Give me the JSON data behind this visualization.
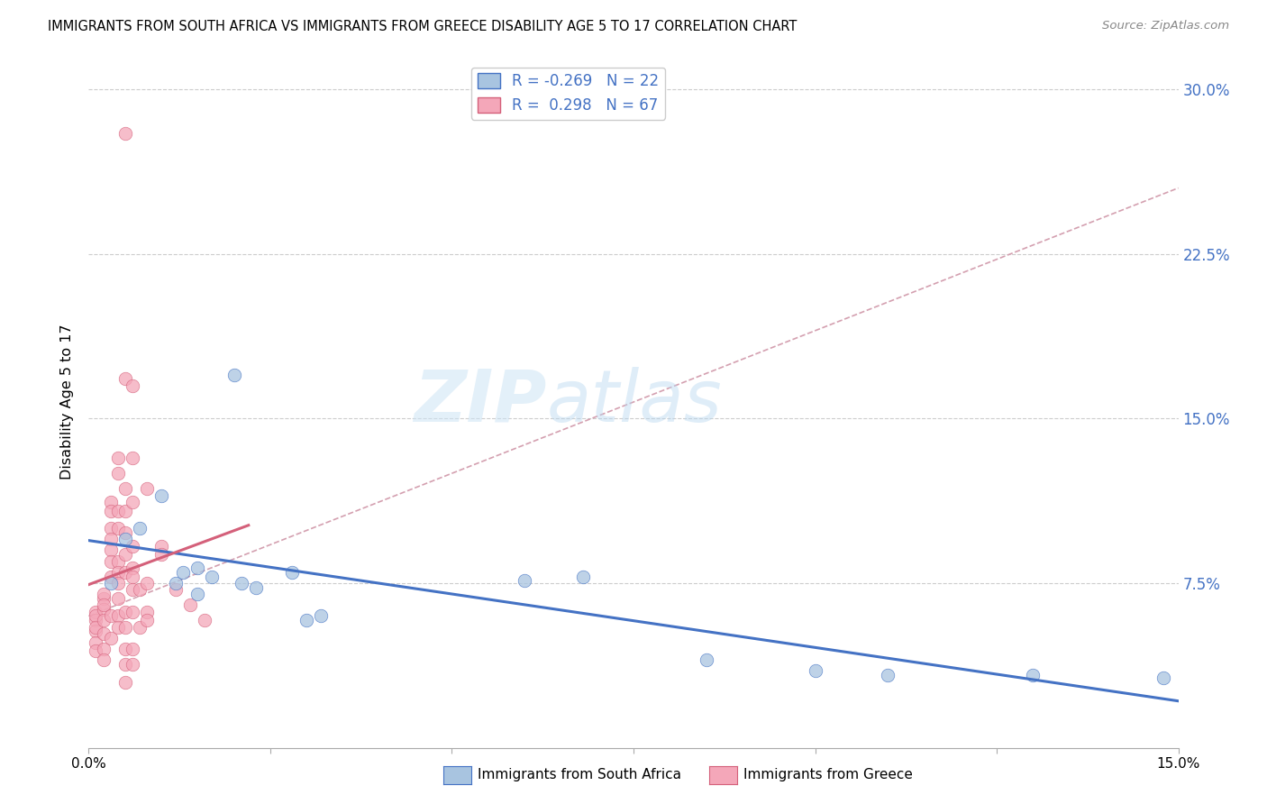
{
  "title": "IMMIGRANTS FROM SOUTH AFRICA VS IMMIGRANTS FROM GREECE DISABILITY AGE 5 TO 17 CORRELATION CHART",
  "source": "Source: ZipAtlas.com",
  "ylabel": "Disability Age 5 to 17",
  "legend_blue_label": "Immigrants from South Africa",
  "legend_pink_label": "Immigrants from Greece",
  "R_blue": -0.269,
  "N_blue": 22,
  "R_pink": 0.298,
  "N_pink": 67,
  "xlim": [
    0.0,
    0.15
  ],
  "ylim": [
    0.0,
    0.315
  ],
  "yticks": [
    0.075,
    0.15,
    0.225,
    0.3
  ],
  "ytick_labels": [
    "7.5%",
    "15.0%",
    "22.5%",
    "30.0%"
  ],
  "watermark_zip": "ZIP",
  "watermark_atlas": "atlas",
  "blue_color": "#a8c4e0",
  "pink_color": "#f4a7b9",
  "blue_line_color": "#4472c4",
  "pink_line_color": "#d4607a",
  "dashed_line_color": "#d4a0b0",
  "blue_scatter": [
    [
      0.003,
      0.075
    ],
    [
      0.005,
      0.095
    ],
    [
      0.007,
      0.1
    ],
    [
      0.01,
      0.115
    ],
    [
      0.012,
      0.075
    ],
    [
      0.013,
      0.08
    ],
    [
      0.015,
      0.082
    ],
    [
      0.015,
      0.07
    ],
    [
      0.017,
      0.078
    ],
    [
      0.02,
      0.17
    ],
    [
      0.021,
      0.075
    ],
    [
      0.023,
      0.073
    ],
    [
      0.028,
      0.08
    ],
    [
      0.03,
      0.058
    ],
    [
      0.032,
      0.06
    ],
    [
      0.06,
      0.076
    ],
    [
      0.068,
      0.078
    ],
    [
      0.085,
      0.04
    ],
    [
      0.1,
      0.035
    ],
    [
      0.11,
      0.033
    ],
    [
      0.13,
      0.033
    ],
    [
      0.148,
      0.032
    ]
  ],
  "pink_scatter": [
    [
      0.001,
      0.062
    ],
    [
      0.001,
      0.058
    ],
    [
      0.001,
      0.053
    ],
    [
      0.001,
      0.048
    ],
    [
      0.001,
      0.044
    ],
    [
      0.001,
      0.06
    ],
    [
      0.001,
      0.055
    ],
    [
      0.002,
      0.068
    ],
    [
      0.002,
      0.063
    ],
    [
      0.002,
      0.058
    ],
    [
      0.002,
      0.052
    ],
    [
      0.002,
      0.045
    ],
    [
      0.002,
      0.04
    ],
    [
      0.002,
      0.07
    ],
    [
      0.002,
      0.065
    ],
    [
      0.003,
      0.112
    ],
    [
      0.003,
      0.108
    ],
    [
      0.003,
      0.1
    ],
    [
      0.003,
      0.095
    ],
    [
      0.003,
      0.09
    ],
    [
      0.003,
      0.085
    ],
    [
      0.003,
      0.078
    ],
    [
      0.003,
      0.06
    ],
    [
      0.003,
      0.05
    ],
    [
      0.004,
      0.132
    ],
    [
      0.004,
      0.125
    ],
    [
      0.004,
      0.108
    ],
    [
      0.004,
      0.1
    ],
    [
      0.004,
      0.085
    ],
    [
      0.004,
      0.08
    ],
    [
      0.004,
      0.075
    ],
    [
      0.004,
      0.068
    ],
    [
      0.004,
      0.06
    ],
    [
      0.004,
      0.055
    ],
    [
      0.005,
      0.28
    ],
    [
      0.005,
      0.168
    ],
    [
      0.005,
      0.118
    ],
    [
      0.005,
      0.108
    ],
    [
      0.005,
      0.098
    ],
    [
      0.005,
      0.088
    ],
    [
      0.005,
      0.08
    ],
    [
      0.005,
      0.062
    ],
    [
      0.005,
      0.055
    ],
    [
      0.005,
      0.045
    ],
    [
      0.005,
      0.038
    ],
    [
      0.005,
      0.03
    ],
    [
      0.006,
      0.165
    ],
    [
      0.006,
      0.132
    ],
    [
      0.006,
      0.112
    ],
    [
      0.006,
      0.092
    ],
    [
      0.006,
      0.082
    ],
    [
      0.006,
      0.078
    ],
    [
      0.006,
      0.072
    ],
    [
      0.006,
      0.062
    ],
    [
      0.006,
      0.045
    ],
    [
      0.006,
      0.038
    ],
    [
      0.007,
      0.072
    ],
    [
      0.007,
      0.055
    ],
    [
      0.008,
      0.118
    ],
    [
      0.008,
      0.075
    ],
    [
      0.008,
      0.062
    ],
    [
      0.008,
      0.058
    ],
    [
      0.01,
      0.092
    ],
    [
      0.01,
      0.088
    ],
    [
      0.012,
      0.072
    ],
    [
      0.014,
      0.065
    ],
    [
      0.016,
      0.058
    ]
  ]
}
